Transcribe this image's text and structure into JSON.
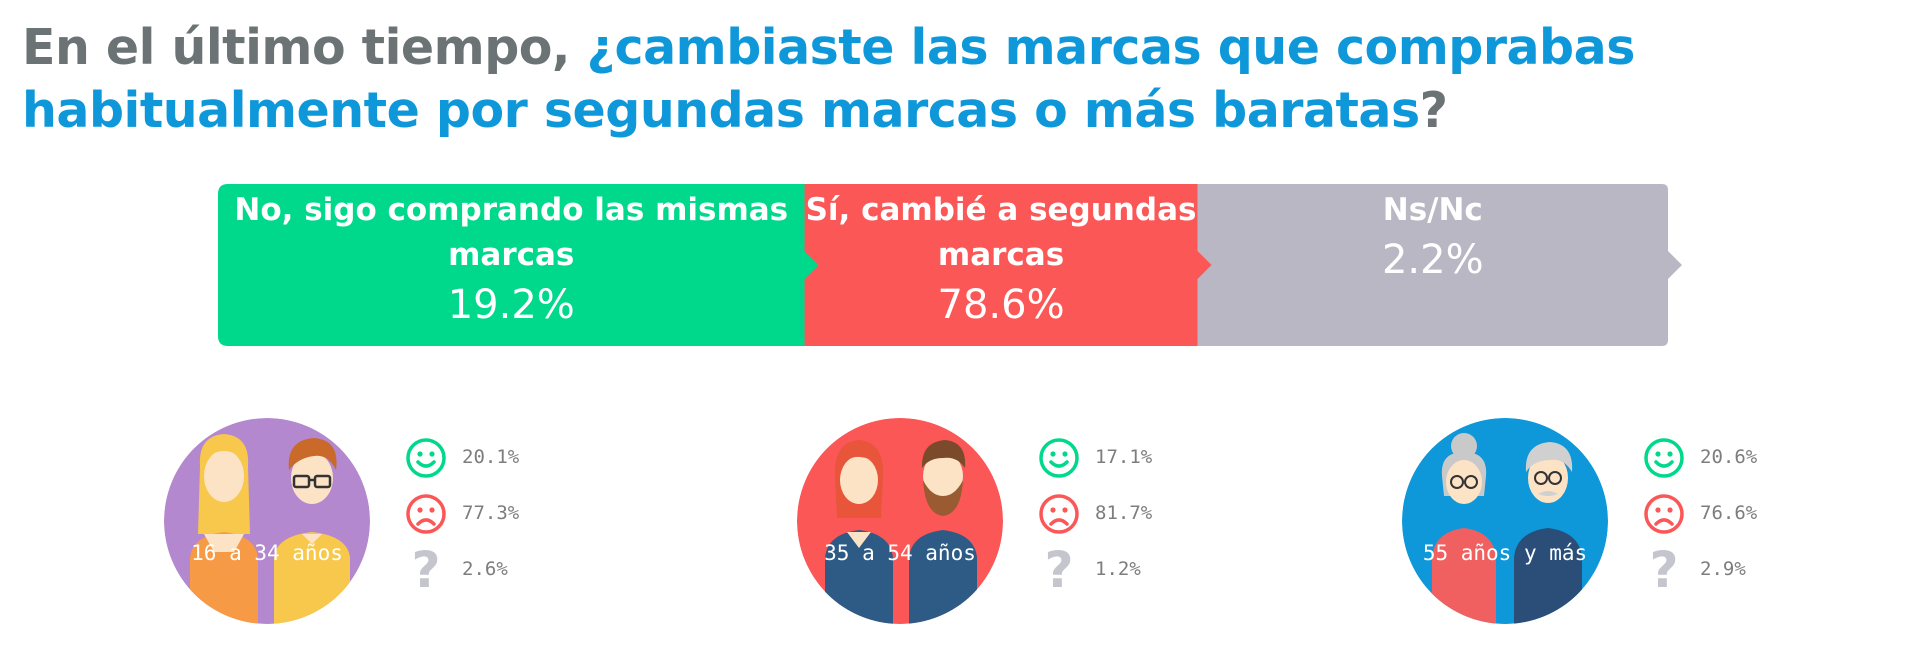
{
  "title": {
    "part1": "En el último tiempo, ",
    "part2": "¿cambiaste las marcas que comprabas habitualmente por segundas marcas o más baratas",
    "part3": "?"
  },
  "chart_data": [
    {
      "type": "bar",
      "orientation": "horizontal-stacked",
      "unit": "%",
      "categories": [
        "No, sigo comprando las mismas marcas",
        "Sí, cambié a segundas marcas",
        "Ns/Nc"
      ],
      "values": [
        19.2,
        78.6,
        2.2
      ],
      "value_labels": [
        "19.2%",
        "78.6%",
        "2.2%"
      ],
      "colors": [
        "#00d98b",
        "#fc5757",
        "#b9b7c3"
      ]
    },
    {
      "type": "table",
      "columns": [
        "age_group",
        "happy",
        "sad",
        "unknown"
      ],
      "groups": [
        {
          "label": "16 a 34 años",
          "values": {
            "happy": "20.1%",
            "sad": "77.3%",
            "unknown": "2.6%"
          },
          "color": "#b488ce"
        },
        {
          "label": "35 a 54 años",
          "values": {
            "happy": "17.1%",
            "sad": "81.7%",
            "unknown": "1.2%"
          },
          "color": "#fc5757"
        },
        {
          "label": "55 años y más",
          "values": {
            "happy": "20.6%",
            "sad": "76.6%",
            "unknown": "2.9%"
          },
          "color": "#0e98d9"
        }
      ]
    }
  ],
  "icons": {
    "happy": "smiley-face-icon",
    "sad": "sad-face-icon",
    "unknown": "question-mark-icon",
    "unknown_glyph": "?"
  },
  "colors": {
    "title_gray": "#6b7375",
    "title_blue": "#0e98d9",
    "happy_green": "#00d98b",
    "sad_red": "#fc5757",
    "question_gray": "#c5c5ce",
    "stat_text": "#7d7d7d"
  }
}
